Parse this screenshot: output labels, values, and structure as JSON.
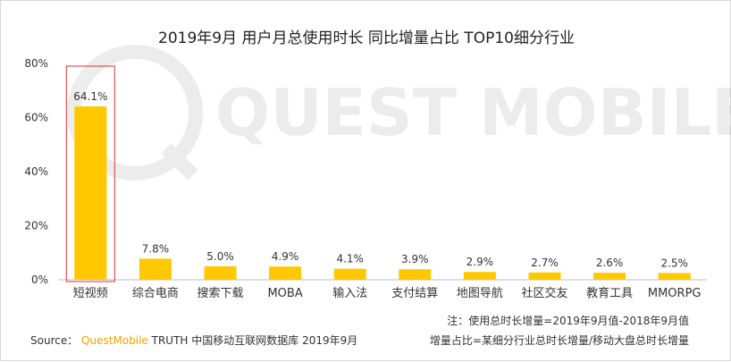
{
  "title": "2019年9月 用户月总使用时长 同比增量占比 TOP10细分行业",
  "watermark": "QUEST MOBILE",
  "colors": {
    "bar": "#FFC800",
    "highlight_box": "#e03030",
    "axis": "#bfbfbf",
    "text": "#333333",
    "brand": "#f5a300"
  },
  "chart_data": {
    "type": "bar",
    "title": "2019年9月 用户月总使用时长 同比增量占比 TOP10细分行业",
    "categories": [
      "短视频",
      "综合电商",
      "搜索下载",
      "MOBA",
      "输入法",
      "支付结算",
      "地图导航",
      "社区交友",
      "教育工具",
      "MMORPG"
    ],
    "values": [
      64.1,
      7.8,
      5.0,
      4.9,
      4.1,
      3.9,
      2.9,
      2.7,
      2.6,
      2.5
    ],
    "value_labels": [
      "64.1%",
      "7.8%",
      "5.0%",
      "4.9%",
      "4.1%",
      "3.9%",
      "2.9%",
      "2.7%",
      "2.6%",
      "2.5%"
    ],
    "yticks": [
      0,
      20,
      40,
      60,
      80
    ],
    "ytick_labels": [
      "0%",
      "20%",
      "40%",
      "60%",
      "80%"
    ],
    "ylim": [
      0,
      80
    ],
    "highlighted_category": "短视频",
    "xlabel": "",
    "ylabel": ""
  },
  "notes": {
    "line1": "注：使用总时长增量=2019年9月值-2018年9月值",
    "line2": "增量占比=某细分行业总时长增量/移动大盘总时长增量"
  },
  "source": {
    "label": "Source：",
    "brand": "QuestMobile",
    "text": " TRUTH 中国移动互联网数据库 2019年9月"
  }
}
